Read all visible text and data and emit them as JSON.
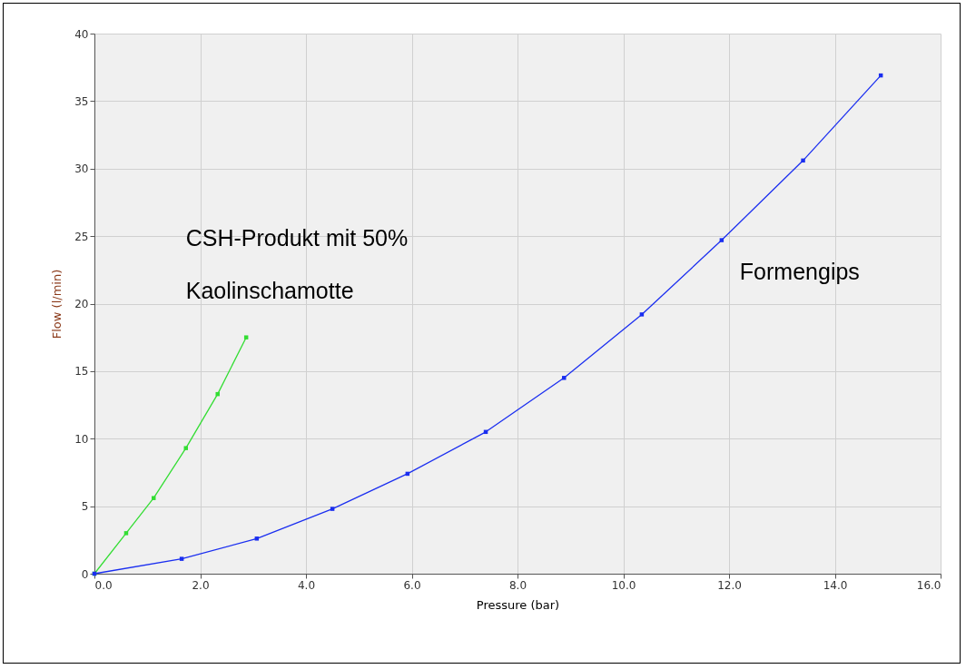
{
  "chart_data": {
    "type": "line",
    "xlabel": "Pressure (bar)",
    "ylabel": "Flow (l/min)",
    "xlim": [
      0,
      16
    ],
    "ylim": [
      0,
      40
    ],
    "xticks": [
      {
        "value": 0,
        "label": "0.0"
      },
      {
        "value": 2,
        "label": "2.0"
      },
      {
        "value": 4,
        "label": "4.0"
      },
      {
        "value": 6,
        "label": "6.0"
      },
      {
        "value": 8,
        "label": "8.0"
      },
      {
        "value": 10,
        "label": "10.0"
      },
      {
        "value": 12,
        "label": "12.0"
      },
      {
        "value": 14,
        "label": "14.0"
      },
      {
        "value": 16,
        "label": "16.0"
      }
    ],
    "yticks": [
      0,
      5,
      10,
      15,
      20,
      25,
      30,
      35,
      40
    ],
    "grid": true,
    "marker": "square",
    "line_style": "solid",
    "legend": false,
    "series": [
      {
        "name": "CSH-Produkt mit 50% Kaolinschamotte",
        "color": "#33dd33",
        "x": [
          0,
          0.6,
          1.12,
          1.73,
          2.33,
          2.87
        ],
        "values": [
          0,
          3.0,
          5.6,
          9.3,
          13.3,
          17.5
        ]
      },
      {
        "name": "Formengips",
        "color": "#1a2ef0",
        "x": [
          0,
          1.65,
          3.07,
          4.5,
          5.92,
          7.4,
          8.88,
          10.35,
          11.86,
          13.4,
          14.87
        ],
        "values": [
          0,
          1.1,
          2.6,
          4.8,
          7.4,
          10.5,
          14.5,
          19.2,
          24.7,
          30.6,
          36.9
        ]
      }
    ]
  }
}
